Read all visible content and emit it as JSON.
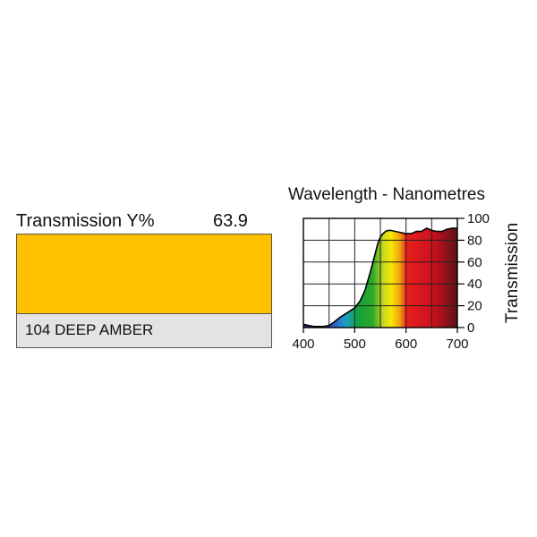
{
  "swatch": {
    "label": "Transmission Y%",
    "value": "63.9",
    "color": "#ffc000",
    "name": "104 DEEP AMBER"
  },
  "chart_data": {
    "type": "area",
    "title": "Wavelength - Nanometres",
    "xlabel": "",
    "ylabel": "Transmission",
    "xlim": [
      400,
      700
    ],
    "ylim": [
      0,
      100
    ],
    "x_ticks": [
      "400",
      "500",
      "600",
      "700"
    ],
    "y_ticks": [
      "0",
      "20",
      "40",
      "60",
      "80",
      "100"
    ],
    "grid": true,
    "x": [
      400,
      410,
      420,
      430,
      440,
      450,
      460,
      470,
      480,
      490,
      500,
      510,
      520,
      530,
      540,
      545,
      550,
      555,
      560,
      565,
      570,
      580,
      590,
      600,
      610,
      620,
      630,
      640,
      650,
      660,
      670,
      680,
      690,
      700
    ],
    "y": [
      3,
      2,
      1,
      1,
      1,
      2,
      5,
      9,
      12,
      15,
      18,
      24,
      34,
      50,
      68,
      77,
      83,
      86,
      88,
      89,
      89,
      88,
      87,
      86,
      86,
      88,
      88,
      91,
      89,
      88,
      88,
      90,
      91,
      91
    ]
  }
}
